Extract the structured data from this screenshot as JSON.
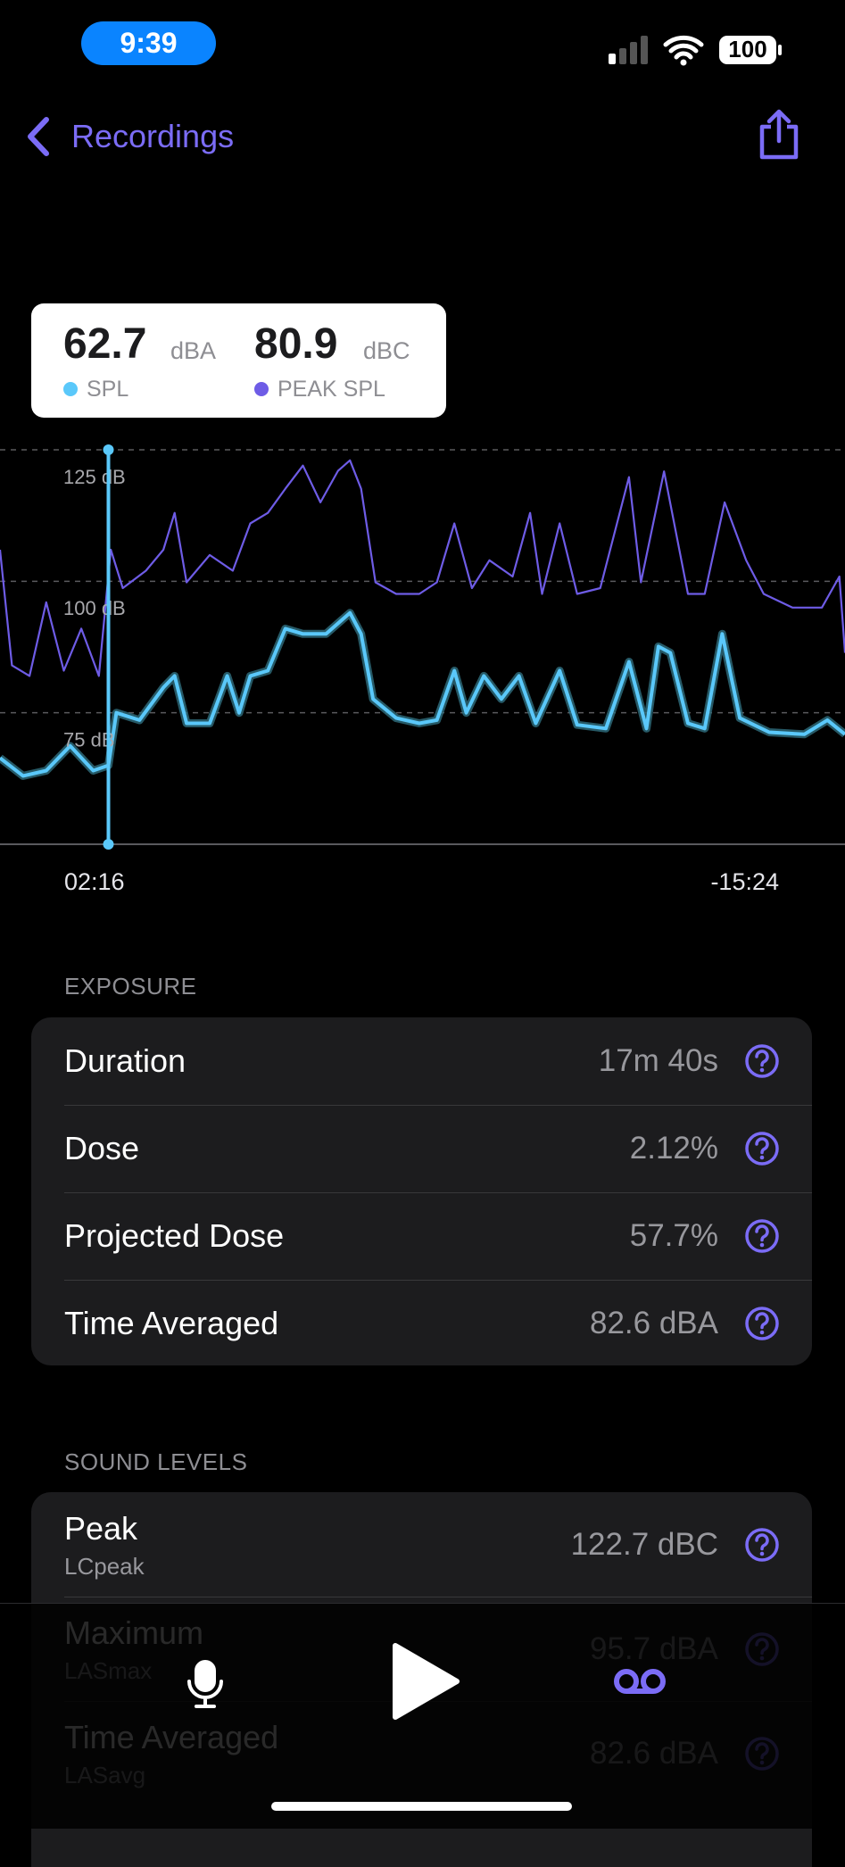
{
  "status_bar": {
    "time": "9:39",
    "battery": "100"
  },
  "nav": {
    "back": "Recordings"
  },
  "readout": {
    "spl": "62.7",
    "spl_unit": "dBA",
    "peak": "80.9",
    "peak_unit": "dBC"
  },
  "chart_data": {
    "type": "line",
    "xlim": [
      0,
      1060
    ],
    "ylim": [
      50,
      125
    ],
    "yticks": [
      {
        "value": 75,
        "label": "75 dB"
      },
      {
        "value": 100,
        "label": "100 dB"
      },
      {
        "value": 125,
        "label": "125 dB"
      }
    ],
    "grid": true,
    "cursor_x": 136,
    "x_start_label": "02:16",
    "x_end_label": "-15:24",
    "series": [
      {
        "name": "SPL",
        "color": "#5ac8fa",
        "x": [
          0,
          29,
          58,
          88,
          117,
          136,
          146,
          175,
          205,
          219,
          234,
          263,
          285,
          300,
          314,
          336,
          358,
          380,
          409,
          439,
          453,
          468,
          497,
          526,
          548,
          570,
          585,
          607,
          629,
          651,
          672,
          702,
          724,
          760,
          789,
          811,
          826,
          841,
          863,
          884,
          906,
          928,
          965,
          1009,
          1038,
          1060
        ],
        "values": [
          66.4,
          63,
          64,
          68.7,
          64,
          65,
          75,
          73.6,
          79.8,
          82,
          73,
          73,
          82,
          75,
          82,
          83,
          91,
          90,
          90,
          94,
          90,
          77.6,
          74,
          73,
          73.6,
          83,
          75,
          82,
          77.6,
          82,
          73,
          83,
          72.7,
          72,
          84.7,
          72,
          87.6,
          86.4,
          73,
          72,
          90,
          74,
          71.3,
          70.9,
          73.6,
          70.9
        ]
      },
      {
        "name": "PEAK SPL",
        "color": "#6e5ce6",
        "x": [
          0,
          15,
          37,
          58,
          80,
          102,
          124,
          139,
          154,
          183,
          205,
          219,
          234,
          263,
          292,
          314,
          336,
          358,
          380,
          402,
          424,
          439,
          453,
          471,
          497,
          526,
          548,
          570,
          592,
          614,
          643,
          665,
          680,
          702,
          724,
          753,
          789,
          804,
          833,
          863,
          884,
          909,
          936,
          958,
          994,
          1031,
          1053,
          1060
        ],
        "values": [
          106,
          84,
          82,
          96,
          83,
          91,
          82,
          106,
          98.7,
          102,
          106,
          113,
          99.8,
          105,
          102,
          111,
          113,
          117.6,
          122,
          115,
          121,
          123,
          117.6,
          99.8,
          97.6,
          97.6,
          99.8,
          111,
          98.7,
          104,
          100.9,
          113,
          97.6,
          111,
          97.6,
          98.7,
          119.8,
          99.8,
          120.9,
          97.6,
          97.6,
          115,
          104,
          97.6,
          95,
          95,
          100.9,
          86.4
        ]
      }
    ]
  },
  "exposure": {
    "title": "EXPOSURE",
    "rows": [
      {
        "label": "Duration",
        "value": "17m 40s"
      },
      {
        "label": "Dose",
        "value": "2.12%"
      },
      {
        "label": "Projected Dose",
        "value": "57.7%"
      },
      {
        "label": "Time Averaged",
        "value": "82.6 dBA"
      }
    ]
  },
  "sound_levels": {
    "title": "SOUND LEVELS",
    "rows": [
      {
        "label": "Peak",
        "sublabel": "LCpeak",
        "value": "122.7 dBC"
      },
      {
        "label": "Maximum",
        "sublabel": "LASmax",
        "value": "95.7 dBA"
      },
      {
        "label": "Time Averaged",
        "sublabel": "LASavg",
        "value": "82.6 dBA"
      }
    ]
  }
}
